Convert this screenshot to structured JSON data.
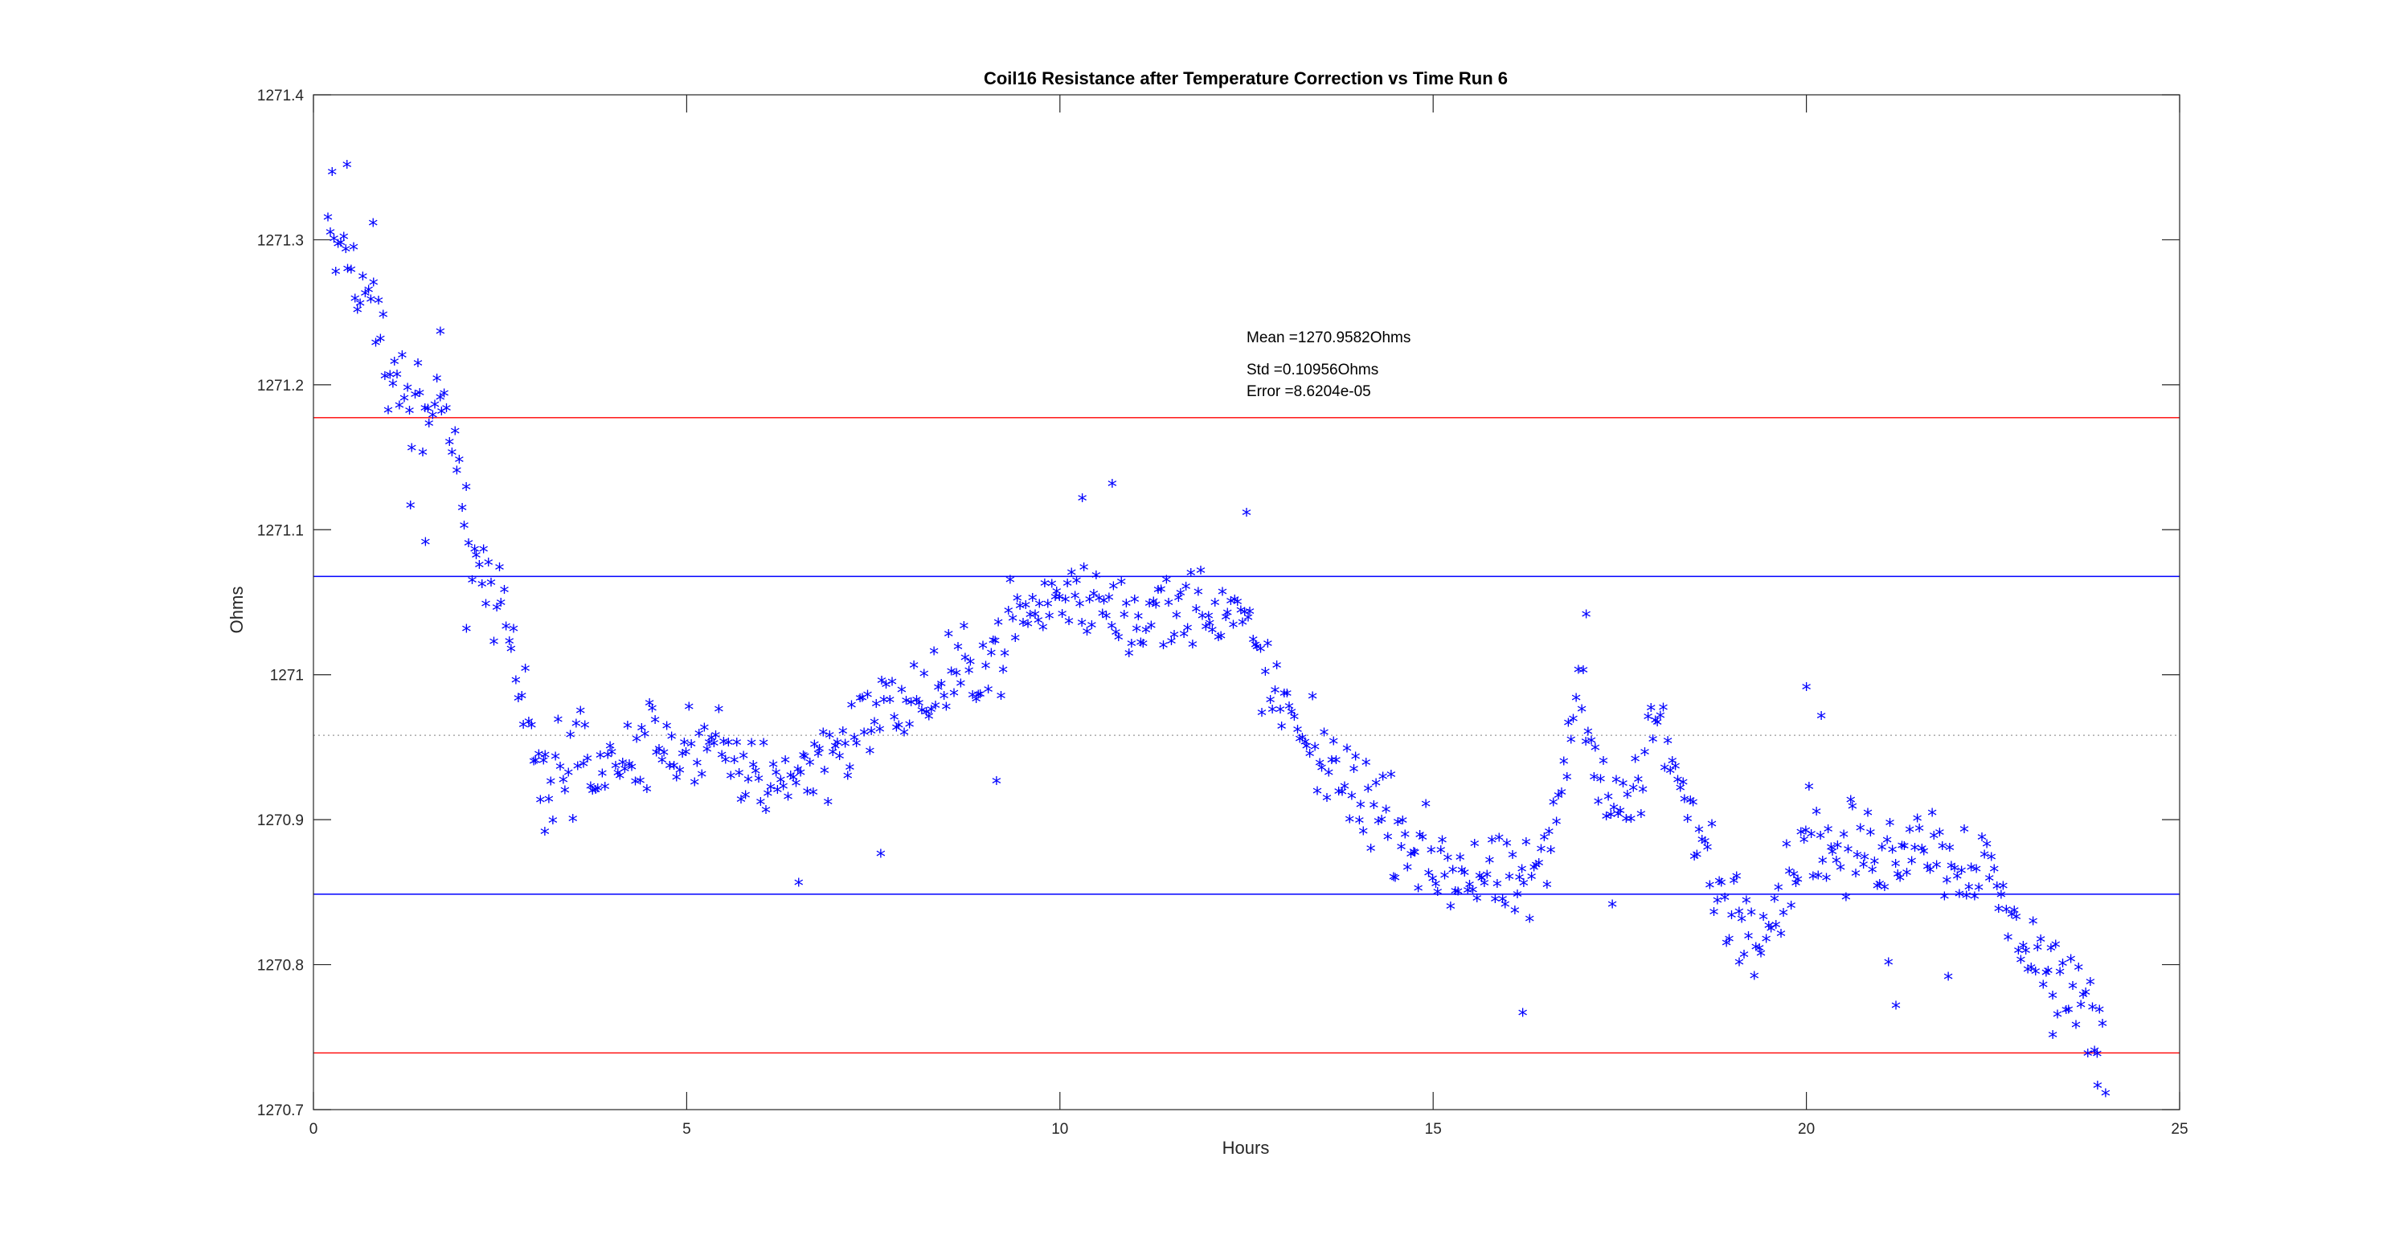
{
  "chart_data": {
    "type": "scatter",
    "title": "Coil16 Resistance after Temperature Correction vs Time Run 6",
    "xlabel": "Hours",
    "ylabel": "Ohms",
    "xlim": [
      0,
      25
    ],
    "ylim": [
      1270.7,
      1271.4
    ],
    "xticks": [
      0,
      5,
      10,
      15,
      20,
      25
    ],
    "xtick_labels": [
      "0",
      "5",
      "10",
      "15",
      "20",
      "25"
    ],
    "yticks": [
      1270.7,
      1270.8,
      1270.9,
      1271.0,
      1271.1,
      1271.2,
      1271.3,
      1271.4
    ],
    "ytick_labels": [
      "1270.7",
      "1270.8",
      "1270.9",
      "1271",
      "1271.1",
      "1271.2",
      "1271.3",
      "1271.4"
    ],
    "grid": false,
    "annotations": [
      "Mean =1270.9582Ohms",
      "Std =0.10956Ohms",
      "Error =8.6204e-05"
    ],
    "reference_lines": [
      {
        "y": 1271.1773,
        "color": "#ff0000",
        "style": "solid"
      },
      {
        "y": 1271.0678,
        "color": "#0000ff",
        "style": "solid"
      },
      {
        "y": 1270.9582,
        "color": "#999999",
        "style": "dotted"
      },
      {
        "y": 1270.8486,
        "color": "#0000ff",
        "style": "solid"
      },
      {
        "y": 1270.7391,
        "color": "#ff0000",
        "style": "solid"
      }
    ],
    "marker": "*",
    "marker_color": "#0000ff",
    "series": [
      {
        "anchors": [
          [
            0.2,
            1271.31
          ],
          [
            0.35,
            1271.3
          ],
          [
            0.5,
            1271.28
          ],
          [
            0.7,
            1271.26
          ],
          [
            0.9,
            1271.23
          ],
          [
            1.1,
            1271.2
          ],
          [
            1.3,
            1271.18
          ],
          [
            1.6,
            1271.19
          ],
          [
            1.8,
            1271.18
          ],
          [
            2.0,
            1271.12
          ],
          [
            2.2,
            1271.08
          ],
          [
            2.5,
            1271.04
          ],
          [
            2.75,
            1270.99
          ],
          [
            3.0,
            1270.94
          ],
          [
            3.3,
            1270.93
          ],
          [
            3.6,
            1270.94
          ],
          [
            4.0,
            1270.93
          ],
          [
            4.5,
            1270.95
          ],
          [
            5.0,
            1270.95
          ],
          [
            5.5,
            1270.94
          ],
          [
            6.0,
            1270.93
          ],
          [
            6.5,
            1270.93
          ],
          [
            7.0,
            1270.95
          ],
          [
            7.5,
            1270.97
          ],
          [
            8.0,
            1270.98
          ],
          [
            8.5,
            1270.99
          ],
          [
            9.0,
            1271.01
          ],
          [
            9.5,
            1271.04
          ],
          [
            10.0,
            1271.05
          ],
          [
            10.5,
            1271.05
          ],
          [
            11.0,
            1271.04
          ],
          [
            11.5,
            1271.04
          ],
          [
            12.0,
            1271.05
          ],
          [
            12.5,
            1271.03
          ],
          [
            13.0,
            1270.97
          ],
          [
            13.5,
            1270.94
          ],
          [
            14.0,
            1270.92
          ],
          [
            14.5,
            1270.89
          ],
          [
            15.0,
            1270.87
          ],
          [
            15.5,
            1270.86
          ],
          [
            16.0,
            1270.85
          ],
          [
            16.5,
            1270.86
          ],
          [
            16.8,
            1270.95
          ],
          [
            17.0,
            1271.0
          ],
          [
            17.2,
            1270.93
          ],
          [
            17.5,
            1270.9
          ],
          [
            17.8,
            1270.93
          ],
          [
            18.0,
            1270.97
          ],
          [
            18.3,
            1270.92
          ],
          [
            18.6,
            1270.88
          ],
          [
            18.9,
            1270.84
          ],
          [
            19.2,
            1270.83
          ],
          [
            19.5,
            1270.83
          ],
          [
            19.8,
            1270.86
          ],
          [
            20.0,
            1270.9
          ],
          [
            20.3,
            1270.87
          ],
          [
            20.6,
            1270.88
          ],
          [
            21.0,
            1270.87
          ],
          [
            21.5,
            1270.89
          ],
          [
            22.0,
            1270.87
          ],
          [
            22.4,
            1270.87
          ],
          [
            22.7,
            1270.83
          ],
          [
            23.0,
            1270.81
          ],
          [
            23.3,
            1270.79
          ],
          [
            23.6,
            1270.78
          ],
          [
            23.8,
            1270.77
          ],
          [
            24.0,
            1270.73
          ]
        ],
        "outliers": [
          [
            0.25,
            1271.345
          ],
          [
            0.45,
            1271.35
          ],
          [
            0.8,
            1271.31
          ],
          [
            1.3,
            1271.115
          ],
          [
            1.5,
            1271.09
          ],
          [
            1.7,
            1271.235
          ],
          [
            2.05,
            1271.03
          ],
          [
            3.1,
            1270.89
          ],
          [
            6.5,
            1270.855
          ],
          [
            7.6,
            1270.875
          ],
          [
            9.15,
            1270.925
          ],
          [
            10.3,
            1271.12
          ],
          [
            10.7,
            1271.13
          ],
          [
            12.5,
            1271.11
          ],
          [
            16.2,
            1270.765
          ],
          [
            17.05,
            1271.04
          ],
          [
            17.4,
            1270.84
          ],
          [
            19.1,
            1270.8
          ],
          [
            21.1,
            1270.8
          ],
          [
            21.2,
            1270.77
          ],
          [
            21.9,
            1270.79
          ],
          [
            23.3,
            1270.75
          ],
          [
            23.9,
            1270.715
          ],
          [
            20.0,
            1270.99
          ],
          [
            20.2,
            1270.97
          ]
        ]
      }
    ]
  }
}
